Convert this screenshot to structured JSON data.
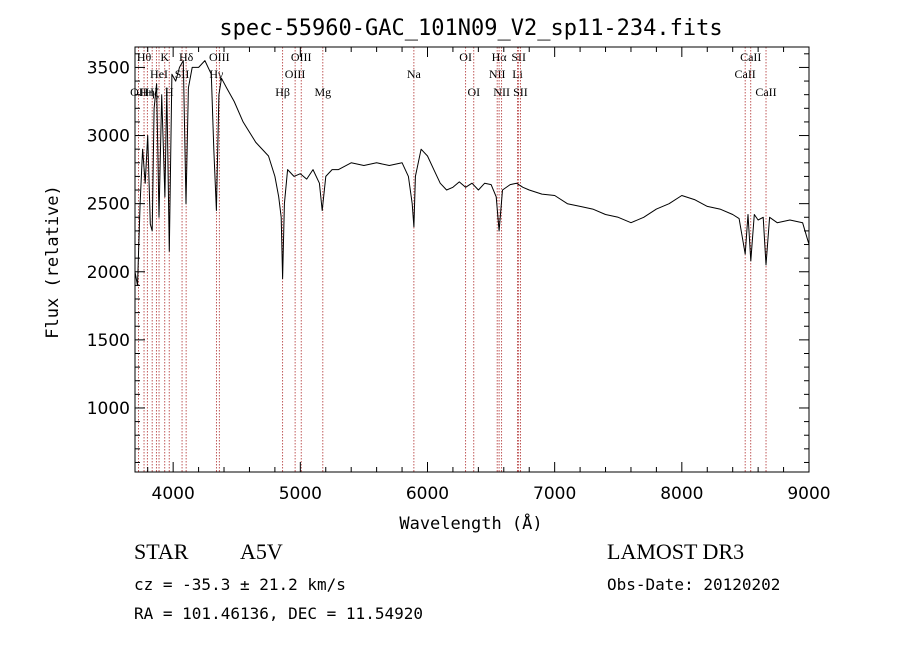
{
  "chart_data": {
    "type": "line",
    "title": "spec-55960-GAC_101N09_V2_sp11-234.fits",
    "xlabel": "Wavelength (Å)",
    "ylabel": "Flux (relative)",
    "xlim": [
      3700,
      9000
    ],
    "ylim": [
      530,
      3650
    ],
    "x_ticks": [
      4000,
      5000,
      6000,
      7000,
      8000,
      9000
    ],
    "y_ticks": [
      1000,
      1500,
      2000,
      2500,
      3000,
      3500
    ],
    "grid": false,
    "series": [
      {
        "name": "spectrum",
        "x": [
          3700,
          3720,
          3740,
          3760,
          3780,
          3800,
          3820,
          3835,
          3850,
          3870,
          3889,
          3910,
          3935,
          3950,
          3970,
          3990,
          4020,
          4050,
          4080,
          4101,
          4120,
          4150,
          4200,
          4250,
          4300,
          4320,
          4340,
          4360,
          4380,
          4420,
          4480,
          4550,
          4650,
          4750,
          4800,
          4830,
          4850,
          4861,
          4875,
          4900,
          4950,
          5000,
          5050,
          5100,
          5150,
          5172,
          5200,
          5250,
          5300,
          5400,
          5500,
          5600,
          5700,
          5800,
          5850,
          5880,
          5893,
          5905,
          5950,
          6000,
          6050,
          6100,
          6150,
          6200,
          6250,
          6300,
          6350,
          6400,
          6450,
          6500,
          6540,
          6563,
          6590,
          6650,
          6700,
          6750,
          6800,
          6900,
          7000,
          7100,
          7200,
          7300,
          7400,
          7500,
          7600,
          7700,
          7800,
          7900,
          8000,
          8100,
          8200,
          8300,
          8400,
          8450,
          8498,
          8520,
          8542,
          8570,
          8600,
          8640,
          8662,
          8690,
          8750,
          8850,
          8950,
          9000
        ],
        "y": [
          2000,
          1900,
          2500,
          2900,
          2650,
          3000,
          2350,
          2300,
          3200,
          3380,
          2400,
          3300,
          2550,
          3350,
          2150,
          3450,
          3400,
          3500,
          3550,
          2500,
          3350,
          3500,
          3500,
          3550,
          3450,
          2900,
          2450,
          3300,
          3420,
          3350,
          3250,
          3100,
          2950,
          2850,
          2700,
          2550,
          2400,
          1950,
          2500,
          2750,
          2700,
          2720,
          2680,
          2750,
          2650,
          2450,
          2700,
          2750,
          2750,
          2800,
          2780,
          2800,
          2780,
          2800,
          2700,
          2500,
          2330,
          2700,
          2900,
          2850,
          2750,
          2650,
          2600,
          2620,
          2660,
          2620,
          2650,
          2600,
          2650,
          2640,
          2550,
          2300,
          2600,
          2640,
          2650,
          2620,
          2600,
          2570,
          2560,
          2500,
          2480,
          2460,
          2420,
          2400,
          2360,
          2400,
          2460,
          2500,
          2560,
          2530,
          2480,
          2460,
          2420,
          2390,
          2130,
          2420,
          2080,
          2420,
          2380,
          2400,
          2050,
          2400,
          2360,
          2380,
          2360,
          2200
        ]
      }
    ],
    "line_markers": [
      {
        "wl": 3727,
        "label": "OII",
        "row": 3
      },
      {
        "wl": 3771,
        "label": "Hθ",
        "row": 1
      },
      {
        "wl": 3797,
        "label": "Hη",
        "row": 3
      },
      {
        "wl": 3835,
        "label": "Hζ",
        "row": 3
      },
      {
        "wl": 3868,
        "label": "",
        "row": 0
      },
      {
        "wl": 3889,
        "label": "HeI",
        "row": 2
      },
      {
        "wl": 3934,
        "label": "K",
        "row": 1
      },
      {
        "wl": 3969,
        "label": "H",
        "row": 3
      },
      {
        "wl": 4070,
        "label": "SII",
        "row": 2
      },
      {
        "wl": 4102,
        "label": "Hδ",
        "row": 1
      },
      {
        "wl": 4340,
        "label": "Hγ",
        "row": 2
      },
      {
        "wl": 4363,
        "label": "OIII",
        "row": 1
      },
      {
        "wl": 4861,
        "label": "Hβ",
        "row": 3
      },
      {
        "wl": 4959,
        "label": "OIII",
        "row": 2
      },
      {
        "wl": 5007,
        "label": "OIII",
        "row": 1
      },
      {
        "wl": 5177,
        "label": "Mg",
        "row": 3
      },
      {
        "wl": 5893,
        "label": "Na",
        "row": 2
      },
      {
        "wl": 6300,
        "label": "OI",
        "row": 1
      },
      {
        "wl": 6364,
        "label": "OI",
        "row": 3
      },
      {
        "wl": 6548,
        "label": "NII",
        "row": 2
      },
      {
        "wl": 6563,
        "label": "Hα",
        "row": 1
      },
      {
        "wl": 6583,
        "label": "NII",
        "row": 3
      },
      {
        "wl": 6708,
        "label": "Li",
        "row": 2
      },
      {
        "wl": 6717,
        "label": "SII",
        "row": 1
      },
      {
        "wl": 6731,
        "label": "SII",
        "row": 3
      },
      {
        "wl": 8498,
        "label": "CaII",
        "row": 2
      },
      {
        "wl": 8542,
        "label": "CaII",
        "row": 1
      },
      {
        "wl": 8662,
        "label": "CaII",
        "row": 3
      }
    ]
  },
  "info": {
    "object_class": "STAR",
    "subclass": "A5V",
    "survey": "LAMOST DR3",
    "cz": "cz = -35.3 ± 21.2 km/s",
    "obs_date": "Obs-Date: 20120202",
    "coords": "RA = 101.46136, DEC =  11.54920"
  },
  "colors": {
    "spectrum": "#000000",
    "marker": "#b03030",
    "label": "#000000"
  }
}
